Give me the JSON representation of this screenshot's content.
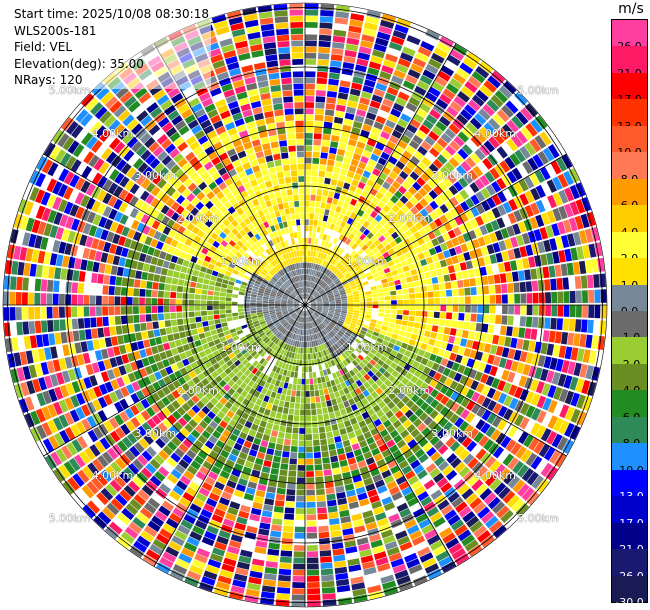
{
  "info": {
    "start_time": "Start time: 2025/10/08 08:30:18",
    "station": "WLS200s-181",
    "field": "Field: VEL",
    "elevation": "Elevation(deg): 35.00",
    "nrays": "NRays: 120"
  },
  "colorbar": {
    "unit": "m/s",
    "levels": [
      {
        "label": "26.0",
        "color": "#ff3fa0"
      },
      {
        "label": "21.0",
        "color": "#ff1a66"
      },
      {
        "label": "17.0",
        "color": "#ff0000"
      },
      {
        "label": "13.0",
        "color": "#ff3300"
      },
      {
        "label": "10.0",
        "color": "#ff5a2a"
      },
      {
        "label": "8.0",
        "color": "#ff7a55"
      },
      {
        "label": "6.0",
        "color": "#ff9a00"
      },
      {
        "label": "4.0",
        "color": "#ffcc00"
      },
      {
        "label": "2.0",
        "color": "#ffff33"
      },
      {
        "label": "1.0",
        "color": "#ffe000"
      },
      {
        "label": "0.0",
        "color": "#778899"
      },
      {
        "label": "-1.0",
        "color": "#6b6b6b"
      },
      {
        "label": "-2.0",
        "color": "#9acd32"
      },
      {
        "label": "-4.0",
        "color": "#6b8e23"
      },
      {
        "label": "-6.0",
        "color": "#228b22"
      },
      {
        "label": "-8.0",
        "color": "#2e8b57"
      },
      {
        "label": "-10.0",
        "color": "#1e90ff"
      },
      {
        "label": "-13.0",
        "color": "#0000ff"
      },
      {
        "label": "-17.0",
        "color": "#0000cd"
      },
      {
        "label": "-21.0",
        "color": "#00008b"
      },
      {
        "label": "-26.0",
        "color": "#191970"
      },
      {
        "label": "-30.0",
        "color": "#1a1a55"
      }
    ]
  },
  "range_labels": [
    "1.00km",
    "2.00km",
    "3.00km",
    "4.00km",
    "5.00km"
  ]
}
